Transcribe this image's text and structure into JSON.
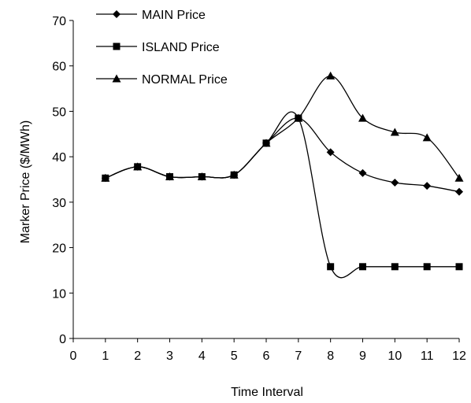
{
  "chart_data": {
    "type": "line",
    "title": "",
    "xlabel": "Time Interval",
    "ylabel": "Marker Price ($/MWh)",
    "xlim": [
      0,
      12
    ],
    "ylim": [
      0,
      70
    ],
    "x_ticks": [
      0,
      1,
      2,
      3,
      4,
      5,
      6,
      7,
      8,
      9,
      10,
      11,
      12
    ],
    "y_ticks": [
      0,
      10,
      20,
      30,
      40,
      50,
      60,
      70
    ],
    "grid": false,
    "legend_position": "top-left",
    "x": [
      1,
      2,
      3,
      4,
      5,
      6,
      7,
      8,
      9,
      10,
      11,
      12
    ],
    "series": [
      {
        "name": "MAIN Price",
        "marker": "diamond",
        "color": "#000000",
        "values": [
          35.3,
          37.8,
          35.6,
          35.6,
          36.0,
          43.0,
          48.5,
          41.0,
          36.4,
          34.3,
          33.6,
          32.3
        ]
      },
      {
        "name": "ISLAND Price",
        "marker": "square",
        "color": "#000000",
        "values": [
          35.3,
          37.8,
          35.6,
          35.6,
          36.0,
          43.0,
          48.5,
          15.8,
          15.8,
          15.8,
          15.8,
          15.8
        ]
      },
      {
        "name": "NORMAL Price",
        "marker": "triangle",
        "color": "#000000",
        "values": [
          35.3,
          37.8,
          35.6,
          35.6,
          36.0,
          43.0,
          48.5,
          57.8,
          48.5,
          45.4,
          44.2,
          35.3
        ]
      }
    ]
  }
}
